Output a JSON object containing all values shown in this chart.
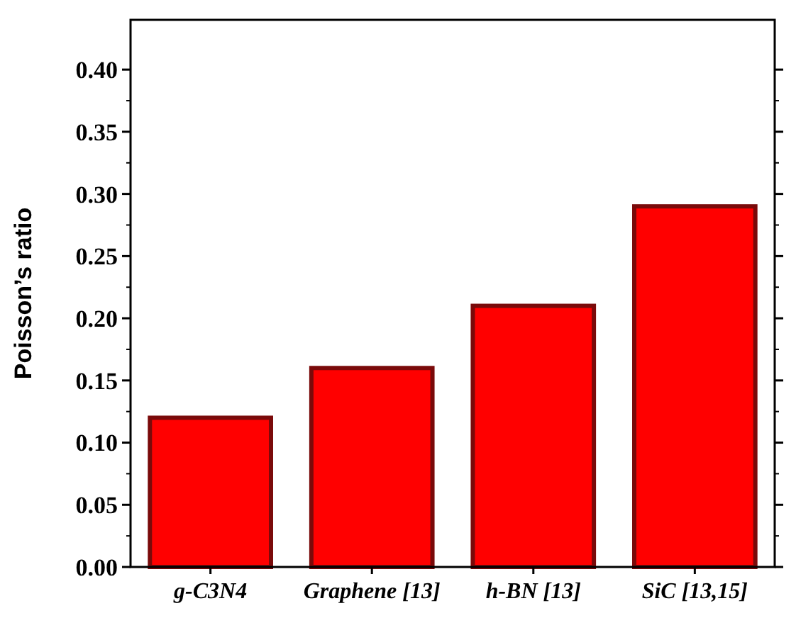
{
  "chart_data": {
    "type": "bar",
    "ylabel": "Poisson’s ratio",
    "categories": [
      "g-C3N4",
      "Graphene [13]",
      "h-BN [13]",
      "SiC [13,15]"
    ],
    "values": [
      0.12,
      0.16,
      0.21,
      0.29
    ],
    "color": "#ff0000",
    "ylim": [
      0,
      0.44
    ],
    "yticks": [
      {
        "value": 0,
        "label": "0.00"
      },
      {
        "value": 0.05,
        "label": "0.05"
      },
      {
        "value": 0.1,
        "label": "0.10"
      },
      {
        "value": 0.15,
        "label": "0.15"
      },
      {
        "value": 0.2,
        "label": "0.20"
      },
      {
        "value": 0.25,
        "label": "0.25"
      },
      {
        "value": 0.3,
        "label": "0.30"
      },
      {
        "value": 0.35,
        "label": "0.35"
      },
      {
        "value": 0.4,
        "label": "0.40"
      }
    ],
    "grid": false
  }
}
